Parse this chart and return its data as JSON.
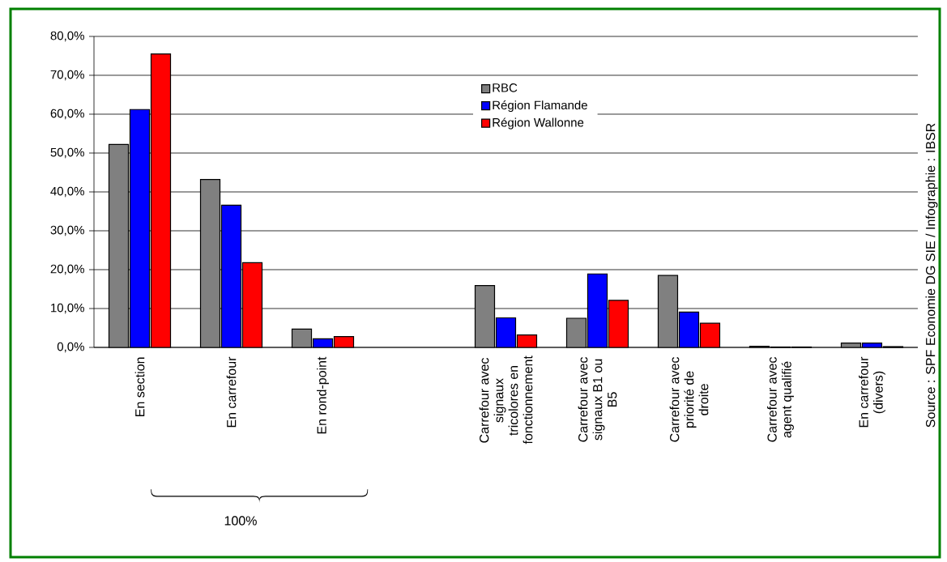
{
  "chart_data": {
    "type": "bar",
    "categories": [
      "En section",
      "En carrefour",
      "En rond-point",
      null,
      "Carrefour avec signaux tricolores en fonctionnement",
      "Carrefour avec signaux B1 ou B5",
      "Carrefour avec priorité de droite",
      "Carrefour avec agent qualifié",
      "En carrefour (divers)"
    ],
    "series": [
      {
        "name": "RBC",
        "color": "#808080",
        "values": [
          52.2,
          43.2,
          4.7,
          null,
          15.9,
          7.5,
          18.5,
          0.3,
          1.1
        ]
      },
      {
        "name": "Région Flamande",
        "color": "#0000ff",
        "values": [
          61.2,
          36.6,
          2.2,
          null,
          7.6,
          18.9,
          9.1,
          0.1,
          1.1
        ]
      },
      {
        "name": "Région Wallonne",
        "color": "#ff0000",
        "values": [
          75.5,
          21.8,
          2.8,
          null,
          3.2,
          12.1,
          6.2,
          0.1,
          0.2
        ]
      }
    ],
    "ylim": [
      0,
      80
    ],
    "yticks": [
      {
        "value": 0,
        "label": "0,0%"
      },
      {
        "value": 10,
        "label": "10,0%"
      },
      {
        "value": 20,
        "label": "20,0%"
      },
      {
        "value": 30,
        "label": "30,0%"
      },
      {
        "value": 40,
        "label": "40,0%"
      },
      {
        "value": 50,
        "label": "50,0%"
      },
      {
        "value": 60,
        "label": "60,0%"
      },
      {
        "value": 70,
        "label": "70,0%"
      },
      {
        "value": 80,
        "label": "80,0%"
      }
    ],
    "grid": "y",
    "legend": "top",
    "annotations": [
      "100%",
      "Source : SPF Economie DG SIE / Infographie : IBSR"
    ]
  }
}
